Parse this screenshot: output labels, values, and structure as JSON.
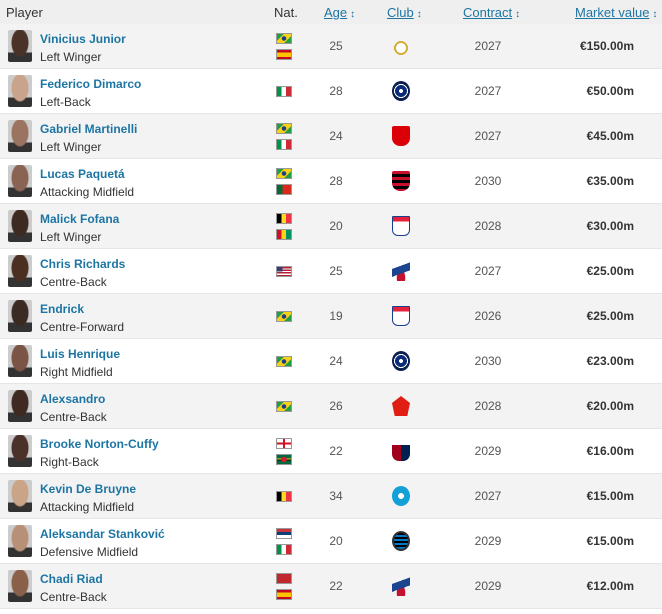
{
  "header": {
    "player": "Player",
    "nat": "Nat.",
    "age": "Age",
    "club": "Club",
    "contract": "Contract",
    "market_value": "Market value",
    "sort_icon": "↕"
  },
  "players": [
    {
      "name": "Vinicius Junior",
      "position": "Left Winger",
      "nat": [
        "br",
        "es"
      ],
      "age": "25",
      "club": "real-madrid",
      "contract": "2027",
      "value": "€150.00m",
      "skin": "#4a3226"
    },
    {
      "name": "Federico Dimarco",
      "position": "Left-Back",
      "nat": [
        "it"
      ],
      "age": "28",
      "club": "inter",
      "contract": "2027",
      "value": "€50.00m",
      "skin": "#c9a38b"
    },
    {
      "name": "Gabriel Martinelli",
      "position": "Left Winger",
      "nat": [
        "br",
        "it"
      ],
      "age": "24",
      "club": "arsenal",
      "contract": "2027",
      "value": "€45.00m",
      "skin": "#9a7460"
    },
    {
      "name": "Lucas Paquetá",
      "position": "Attacking Midfield",
      "nat": [
        "br",
        "pt"
      ],
      "age": "28",
      "club": "flamengo",
      "contract": "2030",
      "value": "€35.00m",
      "skin": "#8a6452"
    },
    {
      "name": "Malick Fofana",
      "position": "Left Winger",
      "nat": [
        "be",
        "gn"
      ],
      "age": "20",
      "club": "lyon",
      "contract": "2028",
      "value": "€30.00m",
      "skin": "#3d2a20"
    },
    {
      "name": "Chris Richards",
      "position": "Centre-Back",
      "nat": [
        "us"
      ],
      "age": "25",
      "club": "crystal-palace",
      "contract": "2027",
      "value": "€25.00m",
      "skin": "#4b3021"
    },
    {
      "name": "Endrick",
      "position": "Centre-Forward",
      "nat": [
        "br"
      ],
      "age": "19",
      "club": "lyon",
      "contract": "2026",
      "value": "€25.00m",
      "skin": "#3a2a22"
    },
    {
      "name": "Luis Henrique",
      "position": "Right Midfield",
      "nat": [
        "br"
      ],
      "age": "24",
      "club": "inter",
      "contract": "2030",
      "value": "€23.00m",
      "skin": "#7a5444"
    },
    {
      "name": "Alexsandro",
      "position": "Centre-Back",
      "nat": [
        "br"
      ],
      "age": "26",
      "club": "lille",
      "contract": "2028",
      "value": "€20.00m",
      "skin": "#3e2a20"
    },
    {
      "name": "Brooke Norton-Cuffy",
      "position": "Right-Back",
      "nat": [
        "en",
        "dm"
      ],
      "age": "22",
      "club": "genoa",
      "contract": "2029",
      "value": "€16.00m",
      "skin": "#4a3228"
    },
    {
      "name": "Kevin De Bruyne",
      "position": "Attacking Midfield",
      "nat": [
        "be"
      ],
      "age": "34",
      "club": "napoli",
      "contract": "2027",
      "value": "€15.00m",
      "skin": "#caa487"
    },
    {
      "name": "Aleksandar Stanković",
      "position": "Defensive Midfield",
      "nat": [
        "rs",
        "it"
      ],
      "age": "20",
      "club": "club-brugge",
      "contract": "2029",
      "value": "€15.00m",
      "skin": "#b89078"
    },
    {
      "name": "Chadi Riad",
      "position": "Centre-Back",
      "nat": [
        "ma",
        "es"
      ],
      "age": "22",
      "club": "crystal-palace",
      "contract": "2029",
      "value": "€12.00m",
      "skin": "#8a6048"
    }
  ]
}
